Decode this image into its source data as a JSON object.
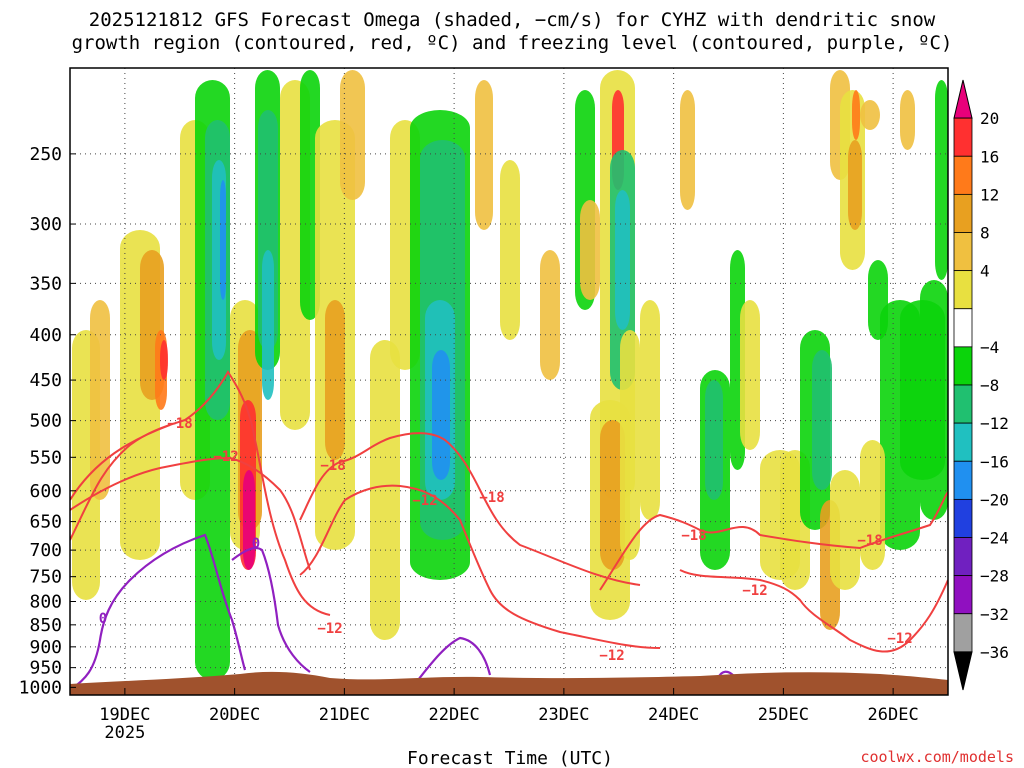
{
  "chart_data": {
    "type": "heatmap",
    "title_line1": "2025121812 GFS Forecast Omega (shaded, −cm/s) for CYHZ with dendritic snow",
    "title_line2": "growth region (contoured, red, ºC) and freezing level (contoured, purple, ºC)",
    "xlabel": "Forecast Time (UTC)",
    "credit": "coolwx.com/models",
    "x_ticks": [
      "19DEC",
      "20DEC",
      "21DEC",
      "22DEC",
      "23DEC",
      "24DEC",
      "25DEC",
      "26DEC"
    ],
    "x_year": "2025",
    "x_range_hours": [
      -12,
      180
    ],
    "y_ticks": [
      250,
      300,
      350,
      400,
      450,
      500,
      550,
      600,
      650,
      700,
      750,
      800,
      850,
      900,
      950,
      1000
    ],
    "y_range_hpa": [
      200,
      1020
    ],
    "grid": true,
    "colorbar": {
      "labels": [
        "20",
        "16",
        "12",
        "8",
        "4",
        "−4",
        "−8",
        "−12",
        "−16",
        "−20",
        "−24",
        "−28",
        "−32",
        "−36"
      ],
      "colors": [
        "#e8007a",
        "#ff3030",
        "#ff7a1a",
        "#e8a020",
        "#f0c040",
        "#e8e040",
        "#ffffff",
        "#0bd40b",
        "#20c070",
        "#20c0c0",
        "#2090f0",
        "#2040e0",
        "#7020c0",
        "#9010c0",
        "#a0a0a0",
        "#000000"
      ]
    },
    "contour_labels": {
      "dendritic": [
        "−18",
        "−12"
      ],
      "freezing": [
        "0"
      ]
    },
    "colors": {
      "dendritic_contour": "#f04040",
      "freezing_contour": "#9020c0",
      "terrain": "#a0522d"
    }
  }
}
